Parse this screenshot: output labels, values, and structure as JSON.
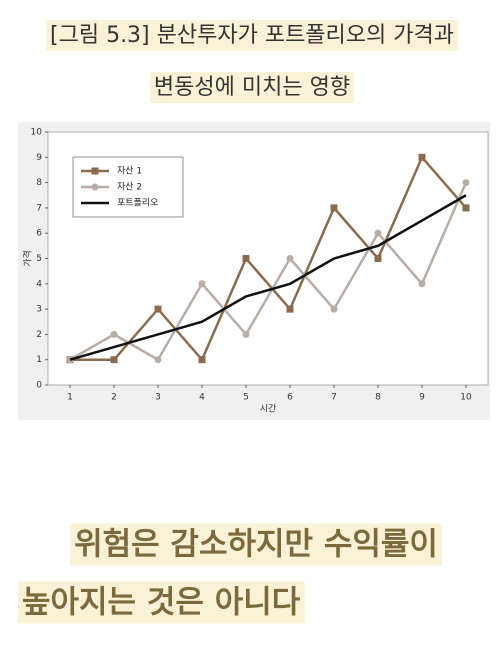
{
  "caption": [
    "[그림 5.3] 분산투자가 포트폴리오의 가격과",
    "변동성에 미치는 영향"
  ],
  "chart_data": {
    "type": "line",
    "x": [
      1,
      2,
      3,
      4,
      5,
      6,
      7,
      8,
      9,
      10
    ],
    "series": [
      {
        "name": "자산 1",
        "color": "#8b6a4e",
        "marker": "square",
        "values": [
          1,
          1,
          3,
          1,
          5,
          3,
          7,
          5,
          9,
          7
        ]
      },
      {
        "name": "자산 2",
        "color": "#b8aca6",
        "marker": "circle",
        "values": [
          1,
          2,
          1,
          4,
          2,
          5,
          3,
          6,
          4,
          8
        ]
      },
      {
        "name": "포트폴리오",
        "color": "#111111",
        "marker": "none",
        "values": [
          1,
          1.5,
          2,
          2.5,
          3.5,
          4,
          5,
          5.5,
          6.5,
          7.5
        ]
      }
    ],
    "xlabel": "시간",
    "ylabel": "가격",
    "xlim": [
      0.5,
      10.5
    ],
    "xticks": [
      1,
      2,
      3,
      4,
      5,
      6,
      7,
      8,
      9,
      10
    ],
    "ylim": [
      0,
      10
    ],
    "yticks": [
      0,
      1,
      2,
      3,
      4,
      5,
      6,
      7,
      8,
      9,
      10
    ],
    "grid": false,
    "legend": "upper left"
  },
  "body_text": [
    "위험은  감소하지만  수익률이",
    "높아지는 것은 아니다"
  ]
}
